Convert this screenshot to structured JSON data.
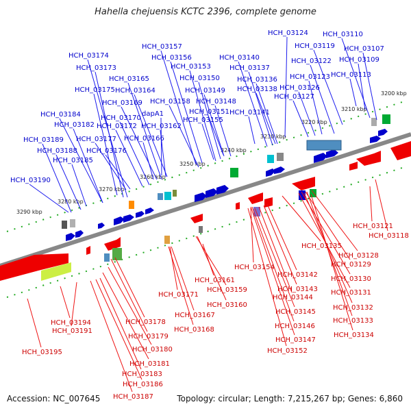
{
  "title": "Hahella chejuensis KCTC 2396, complete genome",
  "accession": "Accession: NC_007645",
  "summary": "Topology: circular; Length: 7,215,267 bp; Genes: 6,860",
  "colors": {
    "forward_strand": "#0000cc",
    "reverse_strand": "#cc0000",
    "backbone": "#777777",
    "ticks": "#118811"
  },
  "kbp_ticks": [
    "3200 kbp",
    "3210 kbp",
    "3220 kbp",
    "3230 kbp",
    "3240 kbp",
    "3250 kbp",
    "3260 kbp",
    "3270 kbp",
    "3280 kbp",
    "3290 kbp"
  ],
  "top_genes": [
    "HCH_03124",
    "HCH_03110",
    "HCH_03119",
    "HCH_03107",
    "HCH_03174",
    "HCH_03157",
    "HCH_03122",
    "HCH_03109",
    "HCH_03156",
    "HCH_03140",
    "HCH_03173",
    "HCH_03153",
    "HCH_03137",
    "HCH_03113",
    "HCH_03123",
    "HCH_03165",
    "HCH_03150",
    "HCH_03136",
    "HCH_03126",
    "HCH_03175",
    "HCH_03164",
    "HCH_03149",
    "HCH_03138",
    "HCH_03127",
    "HCH_03169",
    "HCH_03158",
    "HCH_03148",
    "HCH_03184",
    "HCH_03170",
    "dapA1",
    "HCH_03151",
    "HCH_03141",
    "HCH_03182",
    "HCH_03172",
    "HCH_03162",
    "HCH_03155",
    "HCH_03189",
    "HCH_03177",
    "HCH_03166",
    "HCH_03188",
    "HCH_03176",
    "HCH_03185",
    "HCH_03190"
  ],
  "bottom_genes": [
    "HCH_03121",
    "HCH_03118",
    "HCH_03135",
    "HCH_03128",
    "HCH_03129",
    "HCH_03154",
    "HCH_03142",
    "HCH_03130",
    "HCH_03161",
    "HCH_03159",
    "HCH_03143",
    "HCH_03144",
    "HCH_03131",
    "HCH_03171",
    "HCH_03160",
    "HCH_03132",
    "HCH_03145",
    "HCH_03167",
    "HCH_03133",
    "HCH_03194",
    "HCH_03178",
    "HCH_03146",
    "HCH_03168",
    "HCH_03191",
    "HCH_03134",
    "HCH_03179",
    "HCH_03147",
    "HCH_03180",
    "HCH_03152",
    "HCH_03195",
    "HCH_03181",
    "HCH_03183",
    "HCH_03186",
    "HCH_03187"
  ]
}
